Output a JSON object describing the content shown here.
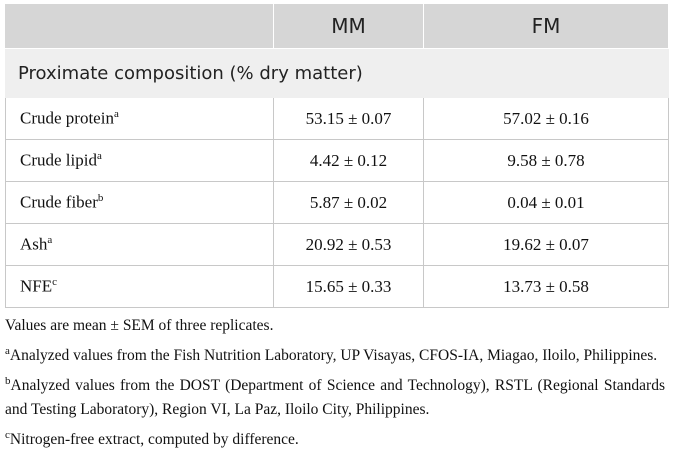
{
  "table": {
    "header": [
      "MM",
      "FM"
    ],
    "section": "Proximate composition (% dry matter)",
    "rows": [
      {
        "label": "Crude protein",
        "sup": "a",
        "mm": "53.15 ± 0.07",
        "fm": "57.02 ± 0.16"
      },
      {
        "label": "Crude lipid",
        "sup": "a",
        "mm": "4.42 ± 0.12",
        "fm": "9.58 ± 0.78"
      },
      {
        "label": "Crude fiber",
        "sup": "b",
        "mm": "5.87 ± 0.02",
        "fm": "0.04 ± 0.01"
      },
      {
        "label": "Ash",
        "sup": "a",
        "mm": "20.92 ± 0.53",
        "fm": "19.62 ± 0.07"
      },
      {
        "label": "NFE",
        "sup": "c",
        "mm": "15.65 ± 0.33",
        "fm": "13.73 ± 0.58"
      }
    ]
  },
  "footnotes": {
    "note": "Values are mean ± SEM of three replicates.",
    "items": [
      {
        "mark": "a",
        "text": "Analyzed values from the Fish Nutrition Laboratory, UP Visayas, CFOS-IA, Miagao, Iloilo, Philippines."
      },
      {
        "mark": "b",
        "text": "Analyzed values from the DOST (Department of Science and Technology), RSTL (Regional Standards and Testing Laboratory), Region VI, La Paz, Iloilo City, Philippines."
      },
      {
        "mark": "c",
        "text": "Nitrogen-free extract, computed by difference."
      }
    ]
  }
}
